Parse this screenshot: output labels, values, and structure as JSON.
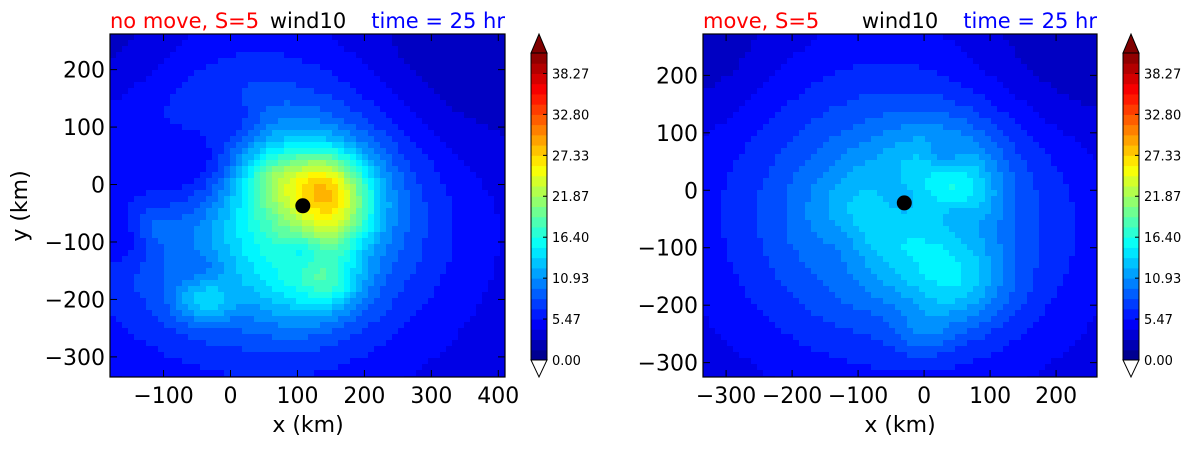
{
  "figure": {
    "title_left": "no move, S=5",
    "title_mid": "wind10",
    "title_right": "time = 25 hr",
    "title_left_color": "#ff0000",
    "title_mid_color": "#000000",
    "title_right_color": "#0000ff",
    "colormap": "jet",
    "colorbar_extend": "both"
  },
  "chart_data": [
    {
      "type": "heatmap",
      "title_parts": [
        "no move, S=5",
        "wind10",
        "time = 25 hr"
      ],
      "xlabel": "x (km)",
      "ylabel": "y (km)",
      "xlim": [
        -180,
        410
      ],
      "ylim": [
        -335,
        262
      ],
      "xticks": [
        -100,
        0,
        100,
        200,
        300,
        400
      ],
      "yticks": [
        200,
        100,
        0,
        -100,
        -200,
        -300
      ],
      "xtick_labels": [
        "−100",
        "0",
        "100",
        "200",
        "300",
        "400"
      ],
      "ytick_labels": [
        "200",
        "100",
        "0",
        "−100",
        "−200",
        "−300"
      ],
      "storm_center": [
        108,
        -37
      ],
      "background_value": 3.5,
      "colorbar": {
        "min": 0,
        "max": 41,
        "ticks": [
          0.0,
          5.47,
          10.93,
          16.4,
          21.87,
          27.33,
          32.8,
          38.27
        ],
        "tick_labels": [
          "0.00",
          "5.47",
          "10.93",
          "16.40",
          "21.87",
          "27.33",
          "32.80",
          "38.27"
        ]
      },
      "features": [
        {
          "x": 60,
          "y": -50,
          "r": 260,
          "value": 3.5
        },
        {
          "x": 40,
          "y": -50,
          "r": 190,
          "value": 2.5
        },
        {
          "x": 10,
          "y": -40,
          "r": 150,
          "value": 3.0
        },
        {
          "x": 100,
          "y": -60,
          "r": 115,
          "value": 3.0
        },
        {
          "x": 110,
          "y": -30,
          "r": 85,
          "value": 2.5
        },
        {
          "x": 120,
          "y": -20,
          "r": 60,
          "value": 4.5
        },
        {
          "x": 150,
          "y": -20,
          "r": 45,
          "value": 4.5
        },
        {
          "x": 140,
          "y": 5,
          "r": 38,
          "value": 5.0
        },
        {
          "x": 60,
          "y": 10,
          "r": 28,
          "value": 3.0
        },
        {
          "x": 170,
          "y": -60,
          "r": 30,
          "value": 2.0
        },
        {
          "x": 150,
          "y": -90,
          "r": 30,
          "value": 2.0
        },
        {
          "x": 110,
          "y": -180,
          "r": 55,
          "value": 3.5
        },
        {
          "x": 150,
          "y": -170,
          "r": 30,
          "value": 4.0
        },
        {
          "x": -40,
          "y": -200,
          "r": 30,
          "value": 4.5
        },
        {
          "x": -120,
          "y": -70,
          "r": 25,
          "value": 2.5
        },
        {
          "x": -80,
          "y": 0,
          "r": 75,
          "value": -4.0
        },
        {
          "x": -40,
          "y": 40,
          "r": 45,
          "value": -3.0
        },
        {
          "x": -160,
          "y": -90,
          "r": 35,
          "value": -2.5
        },
        {
          "x": 10,
          "y": 110,
          "r": 30,
          "value": -2.0
        },
        {
          "x": -40,
          "y": -150,
          "r": 25,
          "value": -2.0
        },
        {
          "x": 110,
          "y": -115,
          "r": 20,
          "value": -3.0
        },
        {
          "x": 330,
          "y": 200,
          "r": 120,
          "value": -2.0
        },
        {
          "x": -180,
          "y": 230,
          "r": 90,
          "value": -1.5
        }
      ]
    },
    {
      "type": "heatmap",
      "title_parts": [
        "move, S=5",
        "wind10",
        "time = 25 hr"
      ],
      "xlabel": "x (km)",
      "ylabel": "",
      "xlim": [
        -335,
        262
      ],
      "ylim": [
        -325,
        272
      ],
      "xticks": [
        -300,
        -200,
        -100,
        0,
        100,
        200
      ],
      "yticks": [
        200,
        100,
        0,
        -100,
        -200,
        -300
      ],
      "xtick_labels": [
        "−300",
        "−200",
        "−100",
        "0",
        "100",
        "200"
      ],
      "ytick_labels": [
        "200",
        "100",
        "0",
        "−100",
        "−200",
        "−300"
      ],
      "storm_center": [
        -30,
        -22
      ],
      "background_value": 3.5,
      "colorbar": {
        "min": 0,
        "max": 41,
        "ticks": [
          0.0,
          5.47,
          10.93,
          16.4,
          21.87,
          27.33,
          32.8,
          38.27
        ],
        "tick_labels": [
          "0.00",
          "5.47",
          "10.93",
          "16.40",
          "21.87",
          "27.33",
          "32.80",
          "38.27"
        ]
      },
      "features": [
        {
          "x": -30,
          "y": -30,
          "r": 260,
          "value": 3.0
        },
        {
          "x": -40,
          "y": -40,
          "r": 190,
          "value": 3.0
        },
        {
          "x": -40,
          "y": -50,
          "r": 150,
          "value": 2.5
        },
        {
          "x": -70,
          "y": -60,
          "r": 70,
          "value": 4.0
        },
        {
          "x": 30,
          "y": 40,
          "r": 60,
          "value": 4.0
        },
        {
          "x": 50,
          "y": -160,
          "r": 55,
          "value": 5.0
        },
        {
          "x": 60,
          "y": -10,
          "r": 35,
          "value": 3.0
        },
        {
          "x": -30,
          "y": -20,
          "r": 40,
          "value": -3.0
        },
        {
          "x": 30,
          "y": 60,
          "r": 20,
          "value": -3.0
        },
        {
          "x": 50,
          "y": -40,
          "r": 25,
          "value": -2.5
        },
        {
          "x": -120,
          "y": -100,
          "r": 40,
          "value": -2.0
        },
        {
          "x": 200,
          "y": 220,
          "r": 110,
          "value": -2.0
        },
        {
          "x": -330,
          "y": 240,
          "r": 90,
          "value": -1.5
        },
        {
          "x": 0,
          "y": -250,
          "r": 30,
          "value": 2.0
        }
      ]
    }
  ]
}
